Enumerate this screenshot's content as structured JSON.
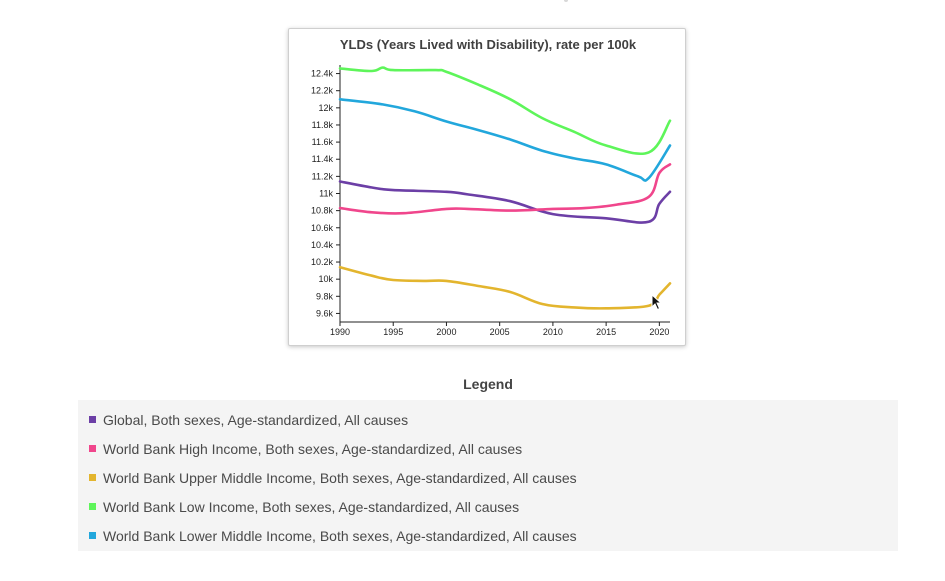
{
  "chart_data": {
    "type": "line",
    "title": "YLDs (Years Lived with Disability), rate per 100k",
    "xlabel": "",
    "ylabel": "",
    "xlim": [
      1990,
      2021
    ],
    "ylim": [
      9500,
      12500
    ],
    "x_ticks": [
      1990,
      1995,
      2000,
      2005,
      2010,
      2015,
      2020
    ],
    "y_ticks": [
      {
        "value": 9600,
        "label": "9.6k"
      },
      {
        "value": 9800,
        "label": "9.8k"
      },
      {
        "value": 10000,
        "label": "10k"
      },
      {
        "value": 10200,
        "label": "10.2k"
      },
      {
        "value": 10400,
        "label": "10.4k"
      },
      {
        "value": 10600,
        "label": "10.6k"
      },
      {
        "value": 10800,
        "label": "10.8k"
      },
      {
        "value": 11000,
        "label": "11k"
      },
      {
        "value": 11200,
        "label": "11.2k"
      },
      {
        "value": 11400,
        "label": "11.4k"
      },
      {
        "value": 11600,
        "label": "11.6k"
      },
      {
        "value": 11800,
        "label": "11.8k"
      },
      {
        "value": 12000,
        "label": "12k"
      },
      {
        "value": 12200,
        "label": "12.2k"
      },
      {
        "value": 12400,
        "label": "12.4k"
      }
    ],
    "grid": false,
    "legend_position": "bottom",
    "series": [
      {
        "name": "Global, Both sexes, Age-standardized, All causes",
        "color": "#6c3fa6",
        "points": [
          [
            1990,
            11140
          ],
          [
            1993,
            11070
          ],
          [
            1995,
            11040
          ],
          [
            2000,
            11020
          ],
          [
            2002,
            10990
          ],
          [
            2006,
            10910
          ],
          [
            2010,
            10760
          ],
          [
            2015,
            10710
          ],
          [
            2019,
            10670
          ],
          [
            2020,
            10880
          ],
          [
            2021,
            11020
          ]
        ]
      },
      {
        "name": "World Bank High Income, Both sexes, Age-standardized, All causes",
        "color": "#f0468c",
        "points": [
          [
            1990,
            10830
          ],
          [
            1993,
            10780
          ],
          [
            1996,
            10770
          ],
          [
            2000,
            10820
          ],
          [
            2002,
            10820
          ],
          [
            2006,
            10800
          ],
          [
            2010,
            10820
          ],
          [
            2013,
            10830
          ],
          [
            2016,
            10870
          ],
          [
            2019,
            10960
          ],
          [
            2020,
            11240
          ],
          [
            2021,
            11340
          ]
        ]
      },
      {
        "name": "World Bank Upper Middle Income, Both sexes, Age-standardized, All causes",
        "color": "#e3b52e",
        "points": [
          [
            1990,
            10140
          ],
          [
            1993,
            10040
          ],
          [
            1995,
            9990
          ],
          [
            1998,
            9980
          ],
          [
            2000,
            9980
          ],
          [
            2003,
            9920
          ],
          [
            2006,
            9850
          ],
          [
            2009,
            9710
          ],
          [
            2012,
            9670
          ],
          [
            2015,
            9660
          ],
          [
            2019,
            9690
          ],
          [
            2020,
            9820
          ],
          [
            2021,
            9950
          ]
        ]
      },
      {
        "name": "World Bank Low Income, Both sexes, Age-standardized, All causes",
        "color": "#5ef55a",
        "points": [
          [
            1990,
            12460
          ],
          [
            1993,
            12430
          ],
          [
            1994,
            12470
          ],
          [
            1995,
            12440
          ],
          [
            1999,
            12440
          ],
          [
            2000,
            12420
          ],
          [
            2003,
            12270
          ],
          [
            2006,
            12100
          ],
          [
            2009,
            11880
          ],
          [
            2012,
            11720
          ],
          [
            2015,
            11560
          ],
          [
            2019,
            11480
          ],
          [
            2021,
            11850
          ]
        ]
      },
      {
        "name": "World Bank Lower Middle Income, Both sexes, Age-standardized, All causes",
        "color": "#22a7dc",
        "points": [
          [
            1990,
            12100
          ],
          [
            1994,
            12040
          ],
          [
            1997,
            11960
          ],
          [
            2000,
            11840
          ],
          [
            2003,
            11740
          ],
          [
            2006,
            11630
          ],
          [
            2009,
            11500
          ],
          [
            2012,
            11410
          ],
          [
            2015,
            11340
          ],
          [
            2018,
            11200
          ],
          [
            2019,
            11180
          ],
          [
            2021,
            11560
          ]
        ]
      }
    ]
  },
  "legend": {
    "title": "Legend"
  }
}
